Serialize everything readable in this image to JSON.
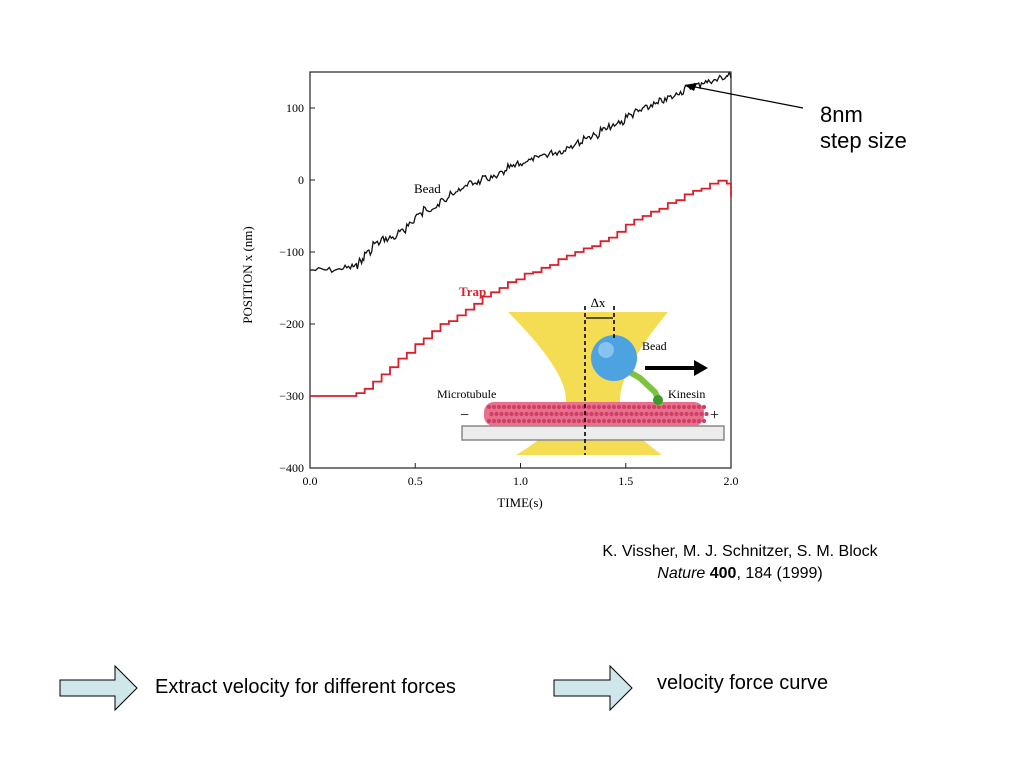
{
  "chart_data": {
    "type": "line",
    "title": "",
    "xlabel": "TIME(s)",
    "ylabel": "POSITION  x (nm)",
    "xlim": [
      0.0,
      2.0
    ],
    "ylim": [
      -400,
      150
    ],
    "x_ticks": [
      "0.0",
      "0.5",
      "1.0",
      "1.5",
      "2.0"
    ],
    "y_ticks": [
      "100",
      "0",
      "−100",
      "−200",
      "−300",
      "−400"
    ],
    "x_tick_values": [
      0,
      0.5,
      1.0,
      1.5,
      2.0
    ],
    "y_tick_values": [
      100,
      0,
      -100,
      -200,
      -300,
      -400
    ],
    "grid": false,
    "series": [
      {
        "name": "Bead",
        "color": "#111111",
        "x": [
          0.0,
          0.08,
          0.15,
          0.2,
          0.23,
          0.26,
          0.3,
          0.34,
          0.38,
          0.42,
          0.46,
          0.5,
          0.54,
          0.58,
          0.62,
          0.66,
          0.7,
          0.74,
          0.78,
          0.82,
          0.86,
          0.9,
          0.94,
          0.98,
          1.02,
          1.06,
          1.1,
          1.14,
          1.18,
          1.22,
          1.26,
          1.3,
          1.34,
          1.38,
          1.42,
          1.46,
          1.5,
          1.54,
          1.58,
          1.62,
          1.66,
          1.7,
          1.74,
          1.78,
          1.82,
          1.86,
          1.9,
          1.94,
          1.98,
          2.0
        ],
        "y": [
          -125,
          -125,
          -122,
          -120,
          -112,
          -100,
          -88,
          -82,
          -80,
          -72,
          -60,
          -48,
          -40,
          -38,
          -28,
          -20,
          -12,
          -5,
          -3,
          2,
          3,
          10,
          18,
          22,
          27,
          30,
          35,
          38,
          40,
          48,
          52,
          60,
          62,
          70,
          74,
          80,
          90,
          95,
          100,
          105,
          110,
          115,
          122,
          128,
          132,
          136,
          138,
          142,
          145,
          145
        ]
      },
      {
        "name": "Trap",
        "color": "#d8202b",
        "x": [
          0.0,
          0.1,
          0.2,
          0.22,
          0.26,
          0.3,
          0.34,
          0.38,
          0.42,
          0.46,
          0.5,
          0.54,
          0.58,
          0.62,
          0.66,
          0.7,
          0.74,
          0.78,
          0.82,
          0.86,
          0.9,
          0.94,
          0.98,
          1.02,
          1.06,
          1.1,
          1.14,
          1.18,
          1.22,
          1.26,
          1.3,
          1.34,
          1.38,
          1.42,
          1.46,
          1.5,
          1.54,
          1.58,
          1.62,
          1.66,
          1.7,
          1.74,
          1.78,
          1.82,
          1.86,
          1.9,
          1.94,
          1.98,
          2.0
        ],
        "y": [
          -300,
          -300,
          -300,
          -296,
          -290,
          -280,
          -270,
          -260,
          -248,
          -240,
          -228,
          -220,
          -210,
          -200,
          -196,
          -188,
          -180,
          -172,
          -162,
          -156,
          -150,
          -142,
          -138,
          -130,
          -128,
          -122,
          -118,
          -110,
          -105,
          -100,
          -95,
          -92,
          -85,
          -80,
          -72,
          -62,
          -55,
          -50,
          -44,
          -40,
          -32,
          -28,
          -20,
          -15,
          -12,
          -5,
          -1,
          -5,
          -23
        ]
      }
    ]
  },
  "inset": {
    "delta_label": "Δx",
    "bead_label": "Bead",
    "microtubule_label": "Microtubule",
    "kinesin_label": "Kinesin",
    "minus_label": "−",
    "plus_label": "+"
  },
  "annotation": {
    "line1": "8nm",
    "line2": "step size"
  },
  "citation": {
    "authors": "K. Vissher, M. J. Schnitzer, S. M. Block",
    "journal": "Nature",
    "volume": "400",
    "rest": ", 184 (1999)"
  },
  "flow": {
    "step1": "Extract velocity for different forces",
    "step2": "velocity force curve",
    "arrow_color": "#cfe7ea"
  }
}
